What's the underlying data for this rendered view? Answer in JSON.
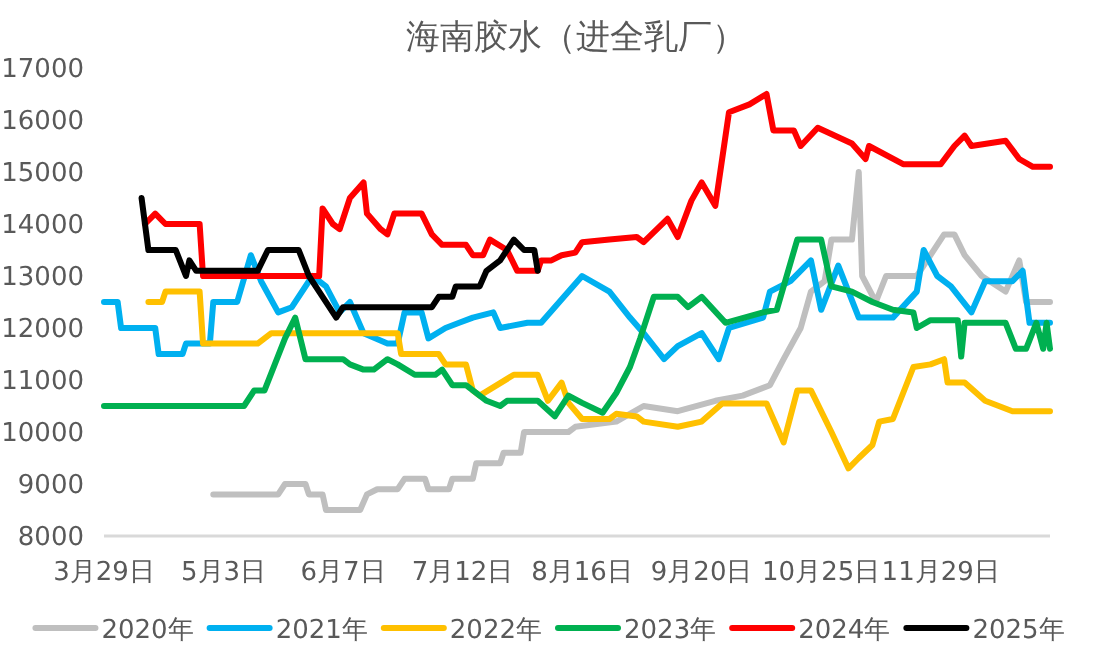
{
  "chart_data": {
    "type": "line",
    "title": "海南胶水（进全乳厂）",
    "xlim": [
      "--03-29",
      "--12-31"
    ],
    "xticks": [
      {
        "value": "--03-29",
        "label": "3月29日"
      },
      {
        "value": "--05-03",
        "label": "5月3日"
      },
      {
        "value": "--06-07",
        "label": "6月7日"
      },
      {
        "value": "--07-12",
        "label": "7月12日"
      },
      {
        "value": "--08-16",
        "label": "8月16日"
      },
      {
        "value": "--09-20",
        "label": "9月20日"
      },
      {
        "value": "--10-25",
        "label": "10月25日"
      },
      {
        "value": "--11-29",
        "label": "11月29日"
      }
    ],
    "ylim": [
      8000,
      17000
    ],
    "yticks": [
      8000,
      9000,
      10000,
      11000,
      12000,
      13000,
      14000,
      15000,
      16000,
      17000
    ],
    "grid": false,
    "legend": "bottom",
    "series": [
      {
        "name": "2020年",
        "color": "#bfbfbf",
        "x": [
          "--04-30",
          "--05-19",
          "--05-21",
          "--05-27",
          "--05-28",
          "--06-01",
          "--06-02",
          "--06-12",
          "--06-14",
          "--06-17",
          "--06-23",
          "--06-25",
          "--07-01",
          "--07-02",
          "--07-08",
          "--07-09",
          "--07-15",
          "--07-16",
          "--07-23",
          "--07-24",
          "--07-29",
          "--07-30",
          "--08-12",
          "--08-14",
          "--08-26",
          "--09-03",
          "--09-13",
          "--09-24",
          "--10-02",
          "--10-10",
          "--10-14",
          "--10-19",
          "--10-22",
          "--10-26",
          "--10-28",
          "--11-03",
          "--11-05",
          "--11-06",
          "--11-10",
          "--11-13",
          "--11-22",
          "--11-30",
          "--12-03",
          "--12-06",
          "--12-11",
          "--12-18",
          "--12-22",
          "--12-24",
          "--12-31"
        ],
        "values": [
          8800,
          8800,
          9000,
          9000,
          8800,
          8800,
          8500,
          8500,
          8800,
          8900,
          8900,
          9100,
          9100,
          8900,
          8900,
          9100,
          9100,
          9400,
          9400,
          9600,
          9600,
          10000,
          10000,
          10100,
          10200,
          10500,
          10400,
          10600,
          10700,
          10900,
          11400,
          12000,
          12700,
          12900,
          13700,
          13700,
          15000,
          13000,
          12500,
          13000,
          13000,
          13800,
          13800,
          13400,
          13000,
          12700,
          13300,
          12500,
          12500
        ]
      },
      {
        "name": "2021年",
        "color": "#00b0f0",
        "x": [
          "--03-29",
          "--04-02",
          "--04-03",
          "--04-13",
          "--04-14",
          "--04-21",
          "--04-22",
          "--04-29",
          "--04-30",
          "--05-07",
          "--05-11",
          "--05-14",
          "--05-19",
          "--05-23",
          "--05-29",
          "--06-02",
          "--06-06",
          "--06-09",
          "--06-13",
          "--06-20",
          "--06-23",
          "--06-25",
          "--06-30",
          "--07-02",
          "--07-07",
          "--07-11",
          "--07-15",
          "--07-21",
          "--07-23",
          "--07-31",
          "--08-04",
          "--08-16",
          "--08-24",
          "--08-30",
          "--09-03",
          "--09-09",
          "--09-13",
          "--09-20",
          "--09-25",
          "--09-28",
          "--10-08",
          "--10-10",
          "--10-16",
          "--10-22",
          "--10-25",
          "--10-30",
          "--11-05",
          "--11-15",
          "--11-22",
          "--11-24",
          "--11-28",
          "--12-02",
          "--12-08",
          "--12-12",
          "--12-20",
          "--12-23",
          "--12-25",
          "--12-31"
        ],
        "values": [
          12500,
          12500,
          12000,
          12000,
          11500,
          11500,
          11700,
          11700,
          12500,
          12500,
          13400,
          12900,
          12300,
          12400,
          13000,
          12800,
          12300,
          12500,
          11900,
          11700,
          11700,
          12300,
          12300,
          11800,
          12000,
          12100,
          12200,
          12300,
          12000,
          12100,
          12100,
          13000,
          12700,
          12200,
          11900,
          11400,
          11650,
          11900,
          11400,
          12000,
          12200,
          12700,
          12900,
          13300,
          12350,
          13200,
          12200,
          12200,
          12700,
          13500,
          13000,
          12800,
          12300,
          12900,
          12900,
          13100,
          12100,
          12100
        ]
      },
      {
        "name": "2022年",
        "color": "#ffc000",
        "x": [
          "--04-11",
          "--04-15",
          "--04-16",
          "--04-26",
          "--04-27",
          "--05-13",
          "--05-17",
          "--06-23",
          "--06-24",
          "--07-05",
          "--07-07",
          "--07-13",
          "--07-15",
          "--07-17",
          "--07-27",
          "--08-03",
          "--08-06",
          "--08-10",
          "--08-12",
          "--08-16",
          "--08-24",
          "--08-26",
          "--09-01",
          "--09-03",
          "--09-13",
          "--09-20",
          "--09-26",
          "--10-09",
          "--10-14",
          "--10-18",
          "--10-22",
          "--10-28",
          "--11-02",
          "--11-05",
          "--11-09",
          "--11-11",
          "--11-15",
          "--11-21",
          "--11-26",
          "--11-30",
          "--12-01",
          "--12-06",
          "--12-12",
          "--12-20",
          "--12-31"
        ],
        "values": [
          12500,
          12500,
          12700,
          12700,
          11700,
          11700,
          11900,
          11900,
          11500,
          11500,
          11300,
          11300,
          10800,
          10700,
          11100,
          11100,
          10600,
          10950,
          10560,
          10250,
          10250,
          10350,
          10300,
          10200,
          10100,
          10200,
          10550,
          10550,
          9800,
          10800,
          10800,
          10000,
          9300,
          9500,
          9750,
          10200,
          10250,
          11250,
          11300,
          11400,
          10950,
          10950,
          10600,
          10400,
          10400
        ]
      },
      {
        "name": "2023年",
        "color": "#00b050",
        "x": [
          "--03-29",
          "--05-09",
          "--05-12",
          "--05-15",
          "--05-18",
          "--05-21",
          "--05-24",
          "--05-27",
          "--06-07",
          "--06-09",
          "--06-13",
          "--06-16",
          "--06-20",
          "--06-23",
          "--06-28",
          "--07-04",
          "--07-06",
          "--07-09",
          "--07-13",
          "--07-19",
          "--07-23",
          "--07-25",
          "--08-03",
          "--08-08",
          "--08-12",
          "--08-16",
          "--08-22",
          "--08-26",
          "--08-30",
          "--09-02",
          "--09-06",
          "--09-13",
          "--09-16",
          "--09-20",
          "--09-27",
          "--10-08",
          "--10-12",
          "--10-18",
          "--10-25",
          "--10-28",
          "--11-03",
          "--11-09",
          "--11-15",
          "--11-21",
          "--11-22",
          "--11-26",
          "--12-04",
          "--12-05",
          "--12-06",
          "--12-18",
          "--12-21",
          "--12-24",
          "--12-27",
          "--12-29",
          "--12-30",
          "--12-31"
        ],
        "values": [
          10500,
          10500,
          10800,
          10800,
          11300,
          11800,
          12200,
          11400,
          11400,
          11300,
          11200,
          11200,
          11400,
          11300,
          11100,
          11100,
          11200,
          10900,
          10900,
          10600,
          10500,
          10600,
          10600,
          10300,
          10700,
          10560,
          10370,
          10750,
          11250,
          11800,
          12600,
          12600,
          12400,
          12600,
          12100,
          12300,
          12350,
          13700,
          13700,
          12800,
          12700,
          12500,
          12350,
          12300,
          12000,
          12150,
          12150,
          11450,
          12100,
          12100,
          11600,
          11600,
          12100,
          11600,
          12100,
          11600
        ]
      },
      {
        "name": "2024年",
        "color": "#ff0000",
        "x": [
          "--04-10",
          "--04-13",
          "--04-16",
          "--04-26",
          "--04-27",
          "--05-31",
          "--06-01",
          "--06-04",
          "--06-06",
          "--06-09",
          "--06-13",
          "--06-14",
          "--06-18",
          "--06-20",
          "--06-22",
          "--06-30",
          "--07-03",
          "--07-06",
          "--07-13",
          "--07-15",
          "--07-18",
          "--07-20",
          "--07-25",
          "--07-28",
          "--08-03",
          "--08-04",
          "--08-07",
          "--08-10",
          "--08-14",
          "--08-16",
          "--08-24",
          "--09-01",
          "--09-03",
          "--09-10",
          "--09-13",
          "--09-17",
          "--09-20",
          "--09-24",
          "--09-28",
          "--10-04",
          "--10-09",
          "--10-11",
          "--10-17",
          "--10-19",
          "--10-24",
          "--11-03",
          "--11-07",
          "--11-08",
          "--11-18",
          "--11-29",
          "--12-03",
          "--12-06",
          "--12-08",
          "--12-18",
          "--12-22",
          "--12-26",
          "--12-31"
        ],
        "values": [
          14000,
          14200,
          14000,
          14000,
          13000,
          13000,
          14300,
          14000,
          13900,
          14500,
          14800,
          14200,
          13900,
          13800,
          14200,
          14200,
          13800,
          13600,
          13600,
          13400,
          13400,
          13700,
          13500,
          13100,
          13100,
          13300,
          13300,
          13400,
          13450,
          13650,
          13700,
          13750,
          13650,
          14100,
          13750,
          14450,
          14800,
          14350,
          16150,
          16300,
          16500,
          15800,
          15800,
          15500,
          15850,
          15550,
          15250,
          15500,
          15150,
          15150,
          15500,
          15700,
          15500,
          15600,
          15250,
          15100,
          15100
        ]
      },
      {
        "name": "2025年",
        "color": "#000000",
        "x": [
          "--04-09",
          "--04-11",
          "--04-19",
          "--04-22",
          "--04-23",
          "--04-25",
          "--05-13",
          "--05-16",
          "--05-25",
          "--05-28",
          "--05-31",
          "--06-05",
          "--06-07",
          "--07-03",
          "--07-05",
          "--07-09",
          "--07-10",
          "--07-17",
          "--07-19",
          "--07-23",
          "--07-27",
          "--07-30",
          "--08-02",
          "--08-03"
        ],
        "values": [
          14500,
          13500,
          13500,
          13000,
          13300,
          13100,
          13100,
          13500,
          13500,
          13000,
          12700,
          12200,
          12400,
          12400,
          12600,
          12600,
          12800,
          12800,
          13100,
          13300,
          13700,
          13500,
          13500,
          13100
        ]
      }
    ]
  }
}
